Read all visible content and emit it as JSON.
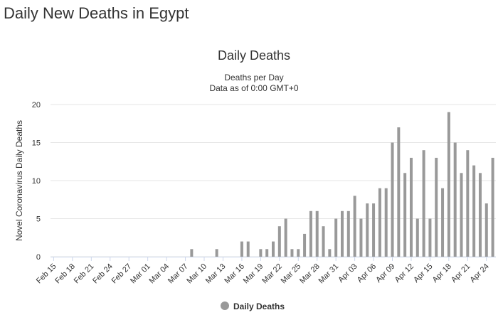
{
  "page_title": "Daily New Deaths in Egypt",
  "chart_data": {
    "type": "bar",
    "title": "Daily Deaths",
    "subtitle": [
      "Deaths per Day",
      "Data as of 0:00 GMT+0"
    ],
    "y_label": "Novel Coronavirus Daily Deaths",
    "categories": [
      "Feb 15",
      null,
      null,
      "Feb 18",
      null,
      null,
      "Feb 21",
      null,
      null,
      "Feb 24",
      null,
      null,
      "Feb 27",
      null,
      null,
      "Mar 01",
      null,
      null,
      "Mar 04",
      null,
      null,
      "Mar 07",
      null,
      null,
      "Mar 10",
      null,
      null,
      "Mar 13",
      null,
      null,
      "Mar 16",
      null,
      null,
      "Mar 19",
      null,
      null,
      "Mar 22",
      null,
      null,
      "Mar 25",
      null,
      null,
      "Mar 28",
      null,
      null,
      "Mar 31",
      null,
      null,
      "Apr 03",
      null,
      null,
      "Apr 06",
      null,
      null,
      "Apr 09",
      null,
      null,
      "Apr 12",
      null,
      null,
      "Apr 15",
      null,
      null,
      "Apr 18",
      null,
      null,
      "Apr 21",
      null,
      null,
      "Apr 24",
      null
    ],
    "series": [
      {
        "name": "Daily Deaths",
        "color": "#999999",
        "values": [
          0,
          0,
          0,
          0,
          0,
          0,
          0,
          0,
          0,
          0,
          0,
          0,
          0,
          0,
          0,
          0,
          0,
          0,
          0,
          0,
          0,
          0,
          1,
          0,
          0,
          0,
          1,
          0,
          0,
          0,
          2,
          2,
          0,
          1,
          1,
          2,
          4,
          5,
          1,
          1,
          3,
          6,
          6,
          4,
          1,
          5,
          6,
          6,
          8,
          5,
          7,
          7,
          9,
          9,
          15,
          17,
          11,
          13,
          5,
          14,
          5,
          13,
          9,
          19,
          15,
          11,
          14,
          12,
          11,
          7,
          13
        ]
      }
    ],
    "ylim": [
      0,
      20
    ],
    "yticks": [
      0,
      5,
      10,
      15,
      20
    ],
    "grid": true,
    "legend": "bottom"
  }
}
